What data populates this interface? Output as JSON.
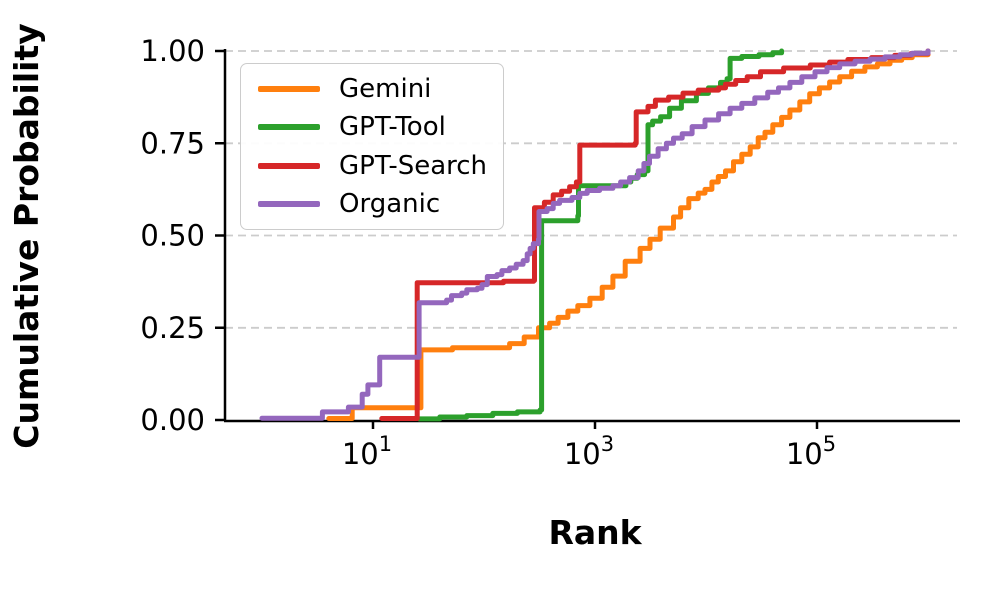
{
  "chart_data": {
    "type": "line",
    "subtype": "ecdf-step",
    "title": "",
    "xlabel": "Rank",
    "ylabel": "Cumulative Probability",
    "x_scale": "log",
    "xlim": [
      0.46,
      1860000
    ],
    "ylim": [
      0,
      1
    ],
    "grid": "horizontal-dashed",
    "grid_color": "#cccccc",
    "axis_color": "#000000",
    "legend_position": "upper-left",
    "x_ticks": [
      {
        "base": "10",
        "exp": "1",
        "value": 10
      },
      {
        "base": "10",
        "exp": "3",
        "value": 1000
      },
      {
        "base": "10",
        "exp": "5",
        "value": 100000
      }
    ],
    "y_ticks": [
      {
        "value": 0.0,
        "label": "0.00"
      },
      {
        "value": 0.25,
        "label": "0.25"
      },
      {
        "value": 0.5,
        "label": "0.50"
      },
      {
        "value": 0.75,
        "label": "0.75"
      },
      {
        "value": 1.0,
        "label": "1.00"
      }
    ],
    "series": [
      {
        "name": "Gemini",
        "color": "#ff7f0e",
        "points": [
          [
            4,
            0.004
          ],
          [
            6.5,
            0.033
          ],
          [
            27,
            0.19
          ],
          [
            52,
            0.196
          ],
          [
            170,
            0.207
          ],
          [
            230,
            0.225
          ],
          [
            310,
            0.25
          ],
          [
            390,
            0.262
          ],
          [
            465,
            0.278
          ],
          [
            570,
            0.295
          ],
          [
            700,
            0.31
          ],
          [
            900,
            0.33
          ],
          [
            1160,
            0.36
          ],
          [
            1450,
            0.39
          ],
          [
            1870,
            0.43
          ],
          [
            2550,
            0.465
          ],
          [
            3130,
            0.49
          ],
          [
            3870,
            0.52
          ],
          [
            5100,
            0.55
          ],
          [
            5900,
            0.575
          ],
          [
            7000,
            0.6
          ],
          [
            8500,
            0.615
          ],
          [
            9800,
            0.625
          ],
          [
            11300,
            0.645
          ],
          [
            12900,
            0.66
          ],
          [
            15000,
            0.675
          ],
          [
            17700,
            0.7
          ],
          [
            21000,
            0.72
          ],
          [
            25000,
            0.74
          ],
          [
            29500,
            0.765
          ],
          [
            34000,
            0.78
          ],
          [
            40000,
            0.8
          ],
          [
            48000,
            0.82
          ],
          [
            57000,
            0.84
          ],
          [
            70000,
            0.862
          ],
          [
            86000,
            0.884
          ],
          [
            105000,
            0.9
          ],
          [
            130000,
            0.916
          ],
          [
            160000,
            0.93
          ],
          [
            205000,
            0.945
          ],
          [
            270000,
            0.957
          ],
          [
            350000,
            0.965
          ],
          [
            455000,
            0.975
          ],
          [
            580000,
            0.982
          ],
          [
            720000,
            0.99
          ],
          [
            1000000,
            1.0
          ]
        ]
      },
      {
        "name": "GPT-Tool",
        "color": "#2ca02c",
        "points": [
          [
            26,
            0.003
          ],
          [
            40,
            0.008
          ],
          [
            70,
            0.012
          ],
          [
            120,
            0.018
          ],
          [
            200,
            0.022
          ],
          [
            320,
            0.027
          ],
          [
            330,
            0.54
          ],
          [
            700,
            0.553
          ],
          [
            710,
            0.635
          ],
          [
            1900,
            0.645
          ],
          [
            2100,
            0.655
          ],
          [
            2400,
            0.665
          ],
          [
            2800,
            0.675
          ],
          [
            3000,
            0.8
          ],
          [
            3300,
            0.81
          ],
          [
            3900,
            0.822
          ],
          [
            4700,
            0.845
          ],
          [
            6000,
            0.865
          ],
          [
            8200,
            0.885
          ],
          [
            10500,
            0.9
          ],
          [
            13500,
            0.915
          ],
          [
            15500,
            0.925
          ],
          [
            16500,
            0.98
          ],
          [
            21000,
            0.985
          ],
          [
            30000,
            0.99
          ],
          [
            40000,
            0.995
          ],
          [
            48000,
            1.0
          ]
        ]
      },
      {
        "name": "GPT-Search",
        "color": "#d62728",
        "points": [
          [
            12,
            0.004
          ],
          [
            25,
            0.372
          ],
          [
            150,
            0.376
          ],
          [
            280,
            0.378
          ],
          [
            285,
            0.575
          ],
          [
            350,
            0.59
          ],
          [
            420,
            0.61
          ],
          [
            500,
            0.62
          ],
          [
            590,
            0.632
          ],
          [
            680,
            0.645
          ],
          [
            730,
            0.745
          ],
          [
            2300,
            0.75
          ],
          [
            2350,
            0.835
          ],
          [
            3000,
            0.85
          ],
          [
            3500,
            0.867
          ],
          [
            4600,
            0.875
          ],
          [
            6200,
            0.886
          ],
          [
            8500,
            0.894
          ],
          [
            13000,
            0.9
          ],
          [
            15000,
            0.91
          ],
          [
            18500,
            0.92
          ],
          [
            23500,
            0.93
          ],
          [
            31000,
            0.944
          ],
          [
            50000,
            0.954
          ],
          [
            87000,
            0.962
          ],
          [
            130000,
            0.97
          ],
          [
            190000,
            0.977
          ],
          [
            310000,
            0.982
          ],
          [
            500000,
            0.988
          ],
          [
            700000,
            0.993
          ],
          [
            1000000,
            1.0
          ]
        ]
      },
      {
        "name": "Organic",
        "color": "#9467bd",
        "points": [
          [
            1,
            0.005
          ],
          [
            3.5,
            0.022
          ],
          [
            6,
            0.035
          ],
          [
            8,
            0.07
          ],
          [
            9,
            0.095
          ],
          [
            11.5,
            0.17
          ],
          [
            26,
            0.318
          ],
          [
            46,
            0.325
          ],
          [
            51,
            0.337
          ],
          [
            63,
            0.344
          ],
          [
            70,
            0.353
          ],
          [
            87,
            0.357
          ],
          [
            96,
            0.367
          ],
          [
            107,
            0.389
          ],
          [
            131,
            0.394
          ],
          [
            145,
            0.405
          ],
          [
            170,
            0.412
          ],
          [
            195,
            0.422
          ],
          [
            225,
            0.432
          ],
          [
            245,
            0.45
          ],
          [
            260,
            0.465
          ],
          [
            278,
            0.478
          ],
          [
            310,
            0.49
          ],
          [
            313,
            0.565
          ],
          [
            370,
            0.573
          ],
          [
            420,
            0.587
          ],
          [
            480,
            0.595
          ],
          [
            620,
            0.603
          ],
          [
            730,
            0.614
          ],
          [
            850,
            0.622
          ],
          [
            1100,
            0.628
          ],
          [
            1450,
            0.635
          ],
          [
            1700,
            0.645
          ],
          [
            2050,
            0.657
          ],
          [
            2450,
            0.675
          ],
          [
            2760,
            0.695
          ],
          [
            3100,
            0.715
          ],
          [
            3700,
            0.735
          ],
          [
            4400,
            0.75
          ],
          [
            5100,
            0.764
          ],
          [
            6100,
            0.776
          ],
          [
            7500,
            0.795
          ],
          [
            9800,
            0.813
          ],
          [
            13000,
            0.83
          ],
          [
            16500,
            0.845
          ],
          [
            21000,
            0.858
          ],
          [
            27500,
            0.873
          ],
          [
            36000,
            0.888
          ],
          [
            45000,
            0.9
          ],
          [
            57000,
            0.915
          ],
          [
            73000,
            0.93
          ],
          [
            96000,
            0.944
          ],
          [
            123000,
            0.955
          ],
          [
            160000,
            0.965
          ],
          [
            220000,
            0.972
          ],
          [
            300000,
            0.978
          ],
          [
            410000,
            0.984
          ],
          [
            560000,
            0.99
          ],
          [
            720000,
            0.994
          ],
          [
            1000000,
            1.0
          ]
        ]
      }
    ]
  }
}
